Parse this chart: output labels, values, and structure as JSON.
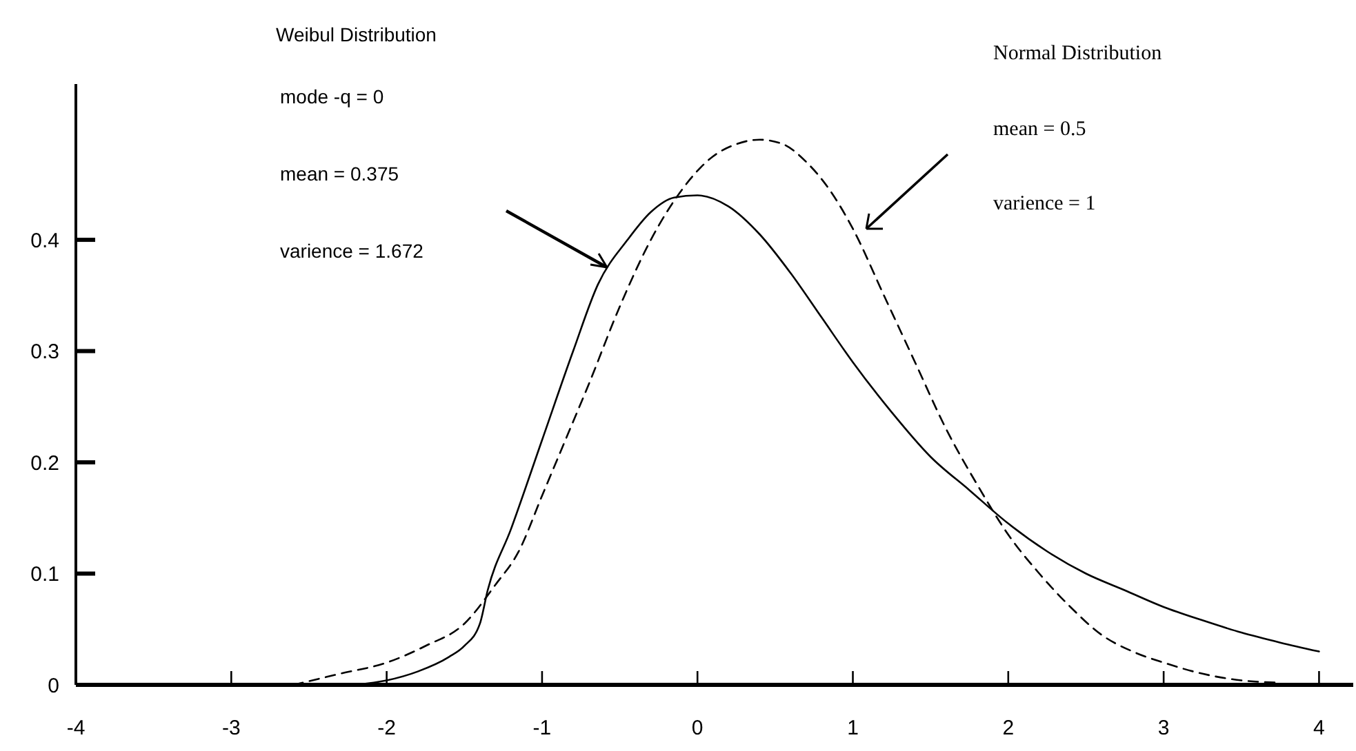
{
  "chart_data": {
    "type": "line",
    "xlim": [
      -4,
      4.22
    ],
    "xticks": [
      -4,
      -3,
      -2,
      -1,
      0,
      1,
      2,
      3,
      4
    ],
    "ylim": [
      0,
      0.54
    ],
    "yticks": [
      0,
      0.1,
      0.2,
      0.3,
      0.4
    ],
    "grid": false,
    "series": [
      {
        "color": "#000000",
        "line_style": "solid",
        "x": [
          -2.2,
          -2,
          -1.8,
          -1.6,
          -1.5,
          -1.4,
          -1.35,
          -1.2,
          -1,
          -0.8,
          -0.64,
          -0.45,
          -0.3,
          -0.15,
          0,
          0.2,
          0.4,
          0.6,
          0.8,
          1,
          1.25,
          1.5,
          1.75,
          2,
          2.25,
          2.5,
          2.75,
          3,
          3.25,
          3.5,
          3.75,
          4
        ],
        "values": [
          0,
          0.004,
          0.012,
          0.025,
          0.035,
          0.055,
          0.085,
          0.14,
          0.22,
          0.3,
          0.36,
          0.4,
          0.425,
          0.438,
          0.44,
          0.43,
          0.405,
          0.37,
          0.33,
          0.29,
          0.245,
          0.205,
          0.175,
          0.145,
          0.12,
          0.1,
          0.085,
          0.07,
          0.058,
          0.047,
          0.038,
          0.03
        ]
      },
      {
        "color": "#000000",
        "line_style": "dashed",
        "x": [
          -2.6,
          -2.3,
          -2,
          -1.75,
          -1.5,
          -1.3,
          -1.15,
          -1,
          -0.85,
          -0.7,
          -0.5,
          -0.3,
          -0.1,
          0.1,
          0.25,
          0.4,
          0.55,
          0.7,
          0.85,
          1,
          1.2,
          1.4,
          1.6,
          1.8,
          2,
          2.2,
          2.4,
          2.6,
          2.8,
          3,
          3.25,
          3.5,
          3.75
        ],
        "values": [
          0,
          0.01,
          0.02,
          0.035,
          0.055,
          0.09,
          0.12,
          0.17,
          0.22,
          0.27,
          0.34,
          0.4,
          0.445,
          0.475,
          0.486,
          0.49,
          0.486,
          0.47,
          0.445,
          0.41,
          0.35,
          0.29,
          0.23,
          0.18,
          0.135,
          0.1,
          0.07,
          0.045,
          0.03,
          0.02,
          0.01,
          0.004,
          0.002
        ]
      }
    ],
    "annotations": [
      "Weibul Distribution",
      "mode -q = 0",
      "mean = 0.375",
      "varience = 1.672",
      "Normal Distribution",
      "mean = 0.5",
      "varience = 1"
    ]
  }
}
